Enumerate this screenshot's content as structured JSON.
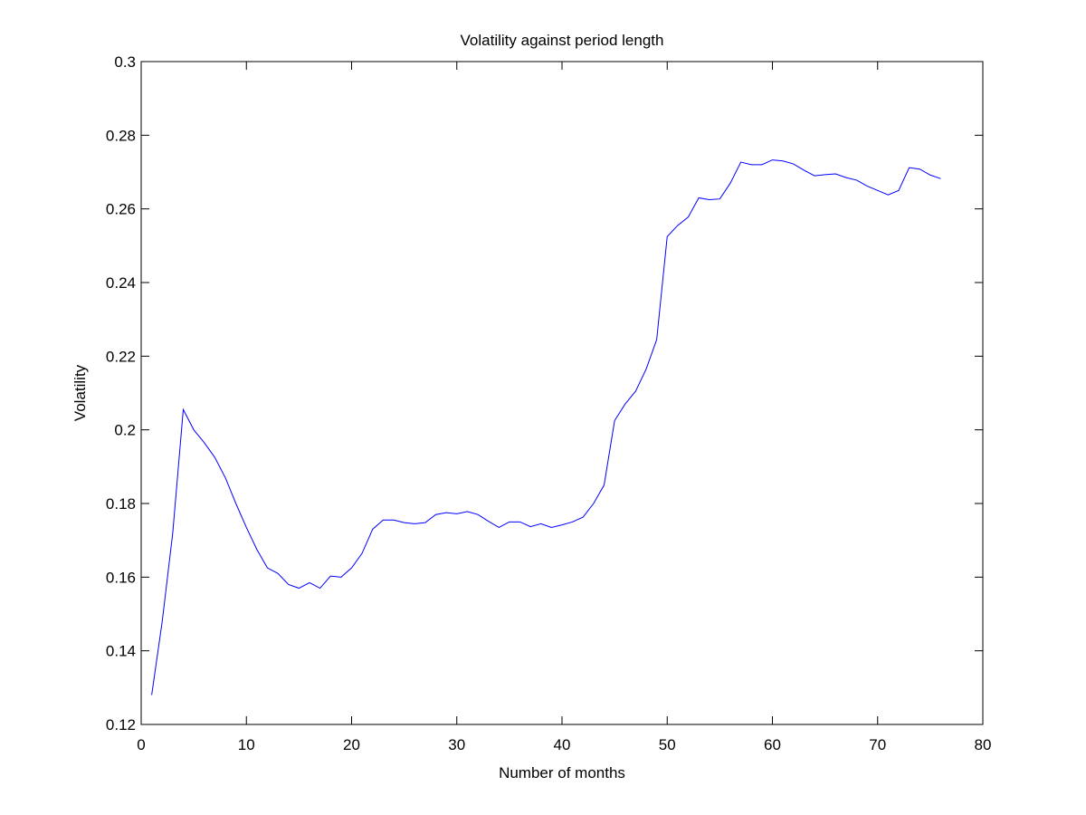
{
  "chart_data": {
    "type": "line",
    "title": "Volatility against period length",
    "x_label": "Number of months",
    "y_label": "Volatility",
    "x": [
      1,
      2,
      3,
      4,
      5,
      6,
      7,
      8,
      9,
      10,
      11,
      12,
      13,
      14,
      15,
      16,
      17,
      18,
      19,
      20,
      21,
      22,
      23,
      24,
      25,
      26,
      27,
      28,
      29,
      30,
      31,
      32,
      33,
      34,
      35,
      36,
      37,
      38,
      39,
      40,
      41,
      42,
      43,
      44,
      45,
      46,
      47,
      48,
      49,
      50,
      51,
      52,
      53,
      54,
      55,
      56,
      57,
      58,
      59,
      60,
      61,
      62,
      63,
      64,
      65,
      66,
      67,
      68,
      69,
      70,
      71,
      72,
      73,
      74,
      75,
      76
    ],
    "series": [
      {
        "color": "#0000ff",
        "values": [
          0.128,
          0.148,
          0.172,
          0.2055,
          0.2,
          0.1965,
          0.1925,
          0.187,
          0.18,
          0.1735,
          0.1675,
          0.1625,
          0.161,
          0.158,
          0.157,
          0.1585,
          0.157,
          0.1603,
          0.16,
          0.1625,
          0.1665,
          0.173,
          0.1755,
          0.1755,
          0.1748,
          0.1745,
          0.1748,
          0.177,
          0.1775,
          0.1772,
          0.1778,
          0.177,
          0.1752,
          0.1735,
          0.175,
          0.175,
          0.1737,
          0.1745,
          0.1735,
          0.1742,
          0.175,
          0.1763,
          0.18,
          0.185,
          0.2025,
          0.207,
          0.2105,
          0.2165,
          0.2245,
          0.2525,
          0.2555,
          0.2578,
          0.263,
          0.2625,
          0.2627,
          0.267,
          0.2727,
          0.272,
          0.272,
          0.2733,
          0.273,
          0.2722,
          0.2705,
          0.269,
          0.2693,
          0.2695,
          0.2685,
          0.2678,
          0.2662,
          0.265,
          0.2638,
          0.265,
          0.2712,
          0.2708,
          0.2692,
          0.2682
        ]
      }
    ],
    "xlim": [
      0,
      80
    ],
    "xticks": [
      0,
      10,
      20,
      30,
      40,
      50,
      60,
      70,
      80
    ],
    "ylim": [
      0.12,
      0.3
    ],
    "yticks": [
      0.12,
      0.14,
      0.16,
      0.18,
      0.2,
      0.22,
      0.24,
      0.26,
      0.28,
      0.3
    ],
    "grid": false
  }
}
